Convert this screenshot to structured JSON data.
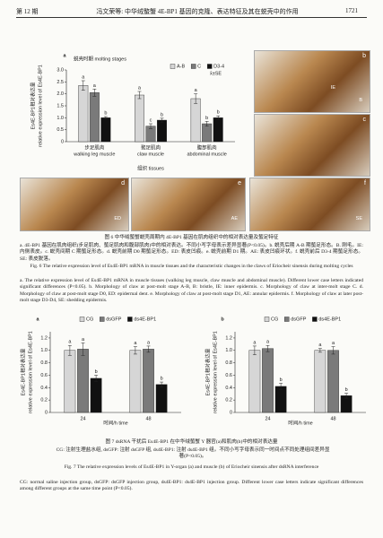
{
  "header": {
    "issue": "第 12 期",
    "running_title": "冯文荣等: 中华绒螯蟹 4E-BP1 基因的克隆、表达特征及其在蜕壳中的作用",
    "page": "1721"
  },
  "figure6": {
    "chart": {
      "type": "bar",
      "panel": "a",
      "legend_title": "蜕壳时期 molting stages",
      "note": "x̄±SE",
      "y_label": [
        "Es4E-BP1相对表达量",
        "relative expression level of Es4E-BP1"
      ],
      "x_label": "组织 tissues",
      "categories": [
        "步足肌肉",
        "螯足肌肉",
        "腹部肌肉"
      ],
      "categories_en": [
        "walking leg muscle",
        "claw muscle",
        "abdominal muscle"
      ],
      "ylim": [
        0,
        3.0
      ],
      "yticks": [
        0,
        0.5,
        {
          "value": 1,
          "label": "1.0"
        },
        1.5,
        {
          "value": 2,
          "label": "2.0"
        },
        2.5,
        {
          "value": 3,
          "label": "3.0"
        }
      ],
      "series": [
        {
          "name": "A-B",
          "color": "#d6d6d6",
          "values": [
            2.35,
            1.95,
            1.8
          ],
          "errors": [
            0.2,
            0.15,
            0.2
          ],
          "letters": [
            "a",
            "a",
            "a"
          ]
        },
        {
          "name": "C",
          "color": "#7a7a7a",
          "values": [
            2.05,
            0.65,
            0.75
          ],
          "errors": [
            0.15,
            0.1,
            0.1
          ],
          "letters": [
            "a",
            "c",
            "b"
          ]
        },
        {
          "name": "D3-4",
          "color": "#111111",
          "values": [
            1.0,
            0.9,
            1.0
          ],
          "errors": [
            0.05,
            0.08,
            0.08
          ],
          "letters": [
            "b",
            "b",
            "b"
          ]
        }
      ]
    },
    "photos": [
      {
        "label": "b",
        "annotations": [
          "B",
          "IE"
        ]
      },
      {
        "label": "c",
        "annotations": []
      },
      {
        "label": "d",
        "annotations": [
          "ED"
        ]
      },
      {
        "label": "e",
        "annotations": [
          "AE"
        ]
      },
      {
        "label": "f",
        "annotations": [
          "SE"
        ]
      }
    ],
    "caption_zh_title": "图 6   中华绒螯蟹蜕壳周期内 4E-BP1 基因在肌肉组织中的相对表达量及螯足特征",
    "caption_zh_body": "a. 4E-BP1 基因在肌肉组织(步足肌肉、螯足肌肉和腹部肌肉)中的相对表达。不同小写字母表示差异显著(P<0.05)。b. 蜕壳后期 A-B 期螯足形态。B. 刚毛。IE: 内侧表皮。c. 蜕壳间期 C 期螯足形态。d. 蜕壳前期 D0 期螯足形态。ED: 表皮凹痕。e. 蜕壳前期 D1 期。AE: 表皮凹痕环状。f. 蜕壳前后 D3-4 期螯足形态。SE: 表皮脱落。",
    "caption_en_title": "Fig. 6   The relative expression level of Es4E-BP1 mRNA in muscle tissues and the characteristic changes in the claws of Eriocheir sinensis during molting cycles",
    "caption_en_body": "a. The relative expression level of Es4E-BP1 mRNA in muscle tissues (walking leg muscle, claw muscle and abdominal muscle). Different lower case letters indicated significant differences (P<0.05). b. Morphology of claw at post-molt stage A-B, B: bristle, IE: inner epidermis. c. Morphology of claw at inter-molt stage C. d. Morphology of claw at post-molt stage D0, ED: epidermal dent. e. Morphology of claw at post-molt stage D1, AE: annular epidermis. f. Morphology of claw at later post-molt stage D3-D4, SE: shedding epidermis."
  },
  "figure7": {
    "charts": [
      {
        "type": "bar",
        "panel": "a",
        "y_label": [
          "Es4E-BP1相对表达量",
          "relative expression level of Es4E-BP1"
        ],
        "x_label": "时间/h time",
        "categories": [
          "24",
          "48"
        ],
        "ylim": [
          0,
          1.3
        ],
        "yticks": [
          0,
          0.2,
          0.4,
          0.6,
          0.8,
          {
            "value": 1,
            "label": "1.0"
          },
          1.2
        ],
        "series": [
          {
            "name": "CG",
            "color": "#d6d6d6",
            "values": [
              1.0,
              1.0
            ],
            "errors": [
              0.08,
              0.06
            ],
            "letters": [
              "a",
              "a"
            ]
          },
          {
            "name": "dsGFP",
            "color": "#7a7a7a",
            "values": [
              1.02,
              1.02
            ],
            "errors": [
              0.1,
              0.05
            ],
            "letters": [
              "a",
              "a"
            ]
          },
          {
            "name": "ds4E-BP1",
            "color": "#111111",
            "values": [
              0.55,
              0.45
            ],
            "errors": [
              0.05,
              0.04
            ],
            "letters": [
              "b",
              "b"
            ]
          }
        ]
      },
      {
        "type": "bar",
        "panel": "b",
        "y_label": [
          "Es4E-BP1相对表达量",
          "relative expression level of Es4E-BP1"
        ],
        "x_label": "时间/h time",
        "categories": [
          "24",
          "48"
        ],
        "ylim": [
          0,
          1.3
        ],
        "yticks": [
          0,
          0.2,
          0.4,
          0.6,
          0.8,
          {
            "value": 1,
            "label": "1.0"
          },
          1.2
        ],
        "series": [
          {
            "name": "CG",
            "color": "#d6d6d6",
            "values": [
              1.0,
              1.0
            ],
            "errors": [
              0.07,
              0.03
            ],
            "letters": [
              "a",
              "a"
            ]
          },
          {
            "name": "dsGFP",
            "color": "#7a7a7a",
            "values": [
              1.03,
              1.0
            ],
            "errors": [
              0.05,
              0.06
            ],
            "letters": [
              "a",
              "a"
            ]
          },
          {
            "name": "ds4E-BP1",
            "color": "#111111",
            "values": [
              0.42,
              0.27
            ],
            "errors": [
              0.05,
              0.04
            ],
            "letters": [
              "b",
              "b"
            ]
          }
        ]
      }
    ],
    "caption_zh_title": "图 7   dsRNA 干扰后 Es4E-BP1 在中华绒螯蟹 Y 器官(a)和肌肉(b)中的相对表达量",
    "caption_zh_body": "CG: 注射生理盐水组, dsGFP: 注射 dsGFP 组, ds4E-BP1: 注射 ds4E-BP1 组。不同小写字母表示同一时间点不同处理组间差异显著(P<0.05)。",
    "caption_en_title": "Fig. 7   The relative expression levels of Es4E-BP1 in Y-organ (a) and muscle (b) of Eriocheir sinensis after dsRNA interference",
    "caption_en_body": "CG: normal saline injection group, dsGFP: dsGFP injection group, ds4E-BP1: ds4E-BP1 injection group. Different lower case letters indicate significant differences among different groups at the same time point (P<0.05)."
  }
}
